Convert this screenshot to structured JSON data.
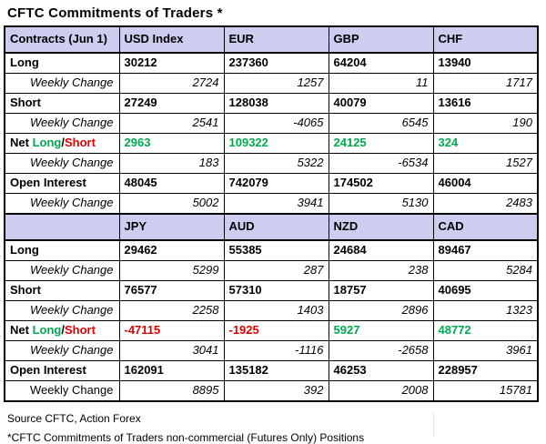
{
  "title": "CFTC Commitments of Traders *",
  "net_label": {
    "prefix": "Net ",
    "long": "Long",
    "slash": "/",
    "short": "Short"
  },
  "colors": {
    "header_bg": "#cdcdf0",
    "positive": "#00a94f",
    "negative": "#e00000",
    "border": "#000000"
  },
  "table": {
    "sections": [
      {
        "header": {
          "label": "Contracts (Jun 1)",
          "columns": [
            "USD Index",
            "EUR",
            "GBP",
            "CHF"
          ]
        },
        "rows": [
          {
            "type": "main",
            "label": "Long",
            "values": [
              "30212",
              "237360",
              "64204",
              "13940"
            ]
          },
          {
            "type": "change",
            "label": "Weekly Change",
            "values": [
              "2724",
              "1257",
              "11",
              "1717"
            ]
          },
          {
            "type": "main",
            "label": "Short",
            "values": [
              "27249",
              "128038",
              "40079",
              "13616"
            ]
          },
          {
            "type": "change",
            "label": "Weekly Change",
            "values": [
              "2541",
              "-4065",
              "6545",
              "190"
            ]
          },
          {
            "type": "net",
            "label": "Net Long/Short",
            "values": [
              "2963",
              "109322",
              "24125",
              "324"
            ],
            "value_colors": [
              "positive",
              "positive",
              "positive",
              "positive"
            ]
          },
          {
            "type": "change",
            "label": "Weekly Change",
            "values": [
              "183",
              "5322",
              "-6534",
              "1527"
            ]
          },
          {
            "type": "main",
            "label": "Open Interest",
            "values": [
              "48045",
              "742079",
              "174502",
              "46004"
            ]
          },
          {
            "type": "change",
            "label": "Weekly Change",
            "values": [
              "5002",
              "3941",
              "5130",
              "2483"
            ]
          }
        ]
      },
      {
        "header": {
          "label": "",
          "columns": [
            "JPY",
            "AUD",
            "NZD",
            "CAD"
          ]
        },
        "rows": [
          {
            "type": "main",
            "label": "Long",
            "values": [
              "29462",
              "55385",
              "24684",
              "89467"
            ]
          },
          {
            "type": "change",
            "label": "Weekly Change",
            "values": [
              "5299",
              "287",
              "238",
              "5284"
            ]
          },
          {
            "type": "main",
            "label": "Short",
            "values": [
              "76577",
              "57310",
              "18757",
              "40695"
            ]
          },
          {
            "type": "change",
            "label": "Weekly Change",
            "values": [
              "2258",
              "1403",
              "2896",
              "1323"
            ]
          },
          {
            "type": "net",
            "label": "Net Long/Short",
            "values": [
              "-47115",
              "-1925",
              "5927",
              "48772"
            ],
            "value_colors": [
              "negative",
              "negative",
              "positive",
              "positive"
            ]
          },
          {
            "type": "change",
            "label": "Weekly Change",
            "values": [
              "3041",
              "-1116",
              "-2658",
              "3961"
            ]
          },
          {
            "type": "main",
            "label": "Open Interest",
            "values": [
              "162091",
              "135182",
              "46253",
              "228957"
            ]
          },
          {
            "type": "change",
            "label": "Weekly Change",
            "values": [
              "8895",
              "392",
              "2008",
              "15781"
            ]
          }
        ]
      }
    ]
  },
  "footer": {
    "source": "Source CFTC, Action Forex",
    "note": "*CFTC Commitments of Traders non-commercial (Futures Only) Positions"
  },
  "chart_data": [
    {
      "type": "table",
      "title": "CFTC Commitments of Traders * (Jun 1)",
      "columns": [
        "Contracts (Jun 1)",
        "USD Index",
        "EUR",
        "GBP",
        "CHF"
      ],
      "rows": [
        [
          "Long",
          30212,
          237360,
          64204,
          13940
        ],
        [
          "Weekly Change",
          2724,
          1257,
          11,
          1717
        ],
        [
          "Short",
          27249,
          128038,
          40079,
          13616
        ],
        [
          "Weekly Change",
          2541,
          -4065,
          6545,
          190
        ],
        [
          "Net Long/Short",
          2963,
          109322,
          24125,
          324
        ],
        [
          "Weekly Change",
          183,
          5322,
          -6534,
          1527
        ],
        [
          "Open Interest",
          48045,
          742079,
          174502,
          46004
        ],
        [
          "Weekly Change",
          5002,
          3941,
          5130,
          2483
        ]
      ]
    },
    {
      "type": "table",
      "title": "CFTC Commitments of Traders * (Jun 1, continued)",
      "columns": [
        "",
        "JPY",
        "AUD",
        "NZD",
        "CAD"
      ],
      "rows": [
        [
          "Long",
          29462,
          55385,
          24684,
          89467
        ],
        [
          "Weekly Change",
          5299,
          287,
          238,
          5284
        ],
        [
          "Short",
          76577,
          57310,
          18757,
          40695
        ],
        [
          "Weekly Change",
          2258,
          1403,
          2896,
          1323
        ],
        [
          "Net Long/Short",
          -47115,
          -1925,
          5927,
          48772
        ],
        [
          "Weekly Change",
          3041,
          -1116,
          -2658,
          3961
        ],
        [
          "Open Interest",
          162091,
          135182,
          46253,
          228957
        ],
        [
          "Weekly Change",
          8895,
          392,
          2008,
          15781
        ]
      ]
    }
  ]
}
